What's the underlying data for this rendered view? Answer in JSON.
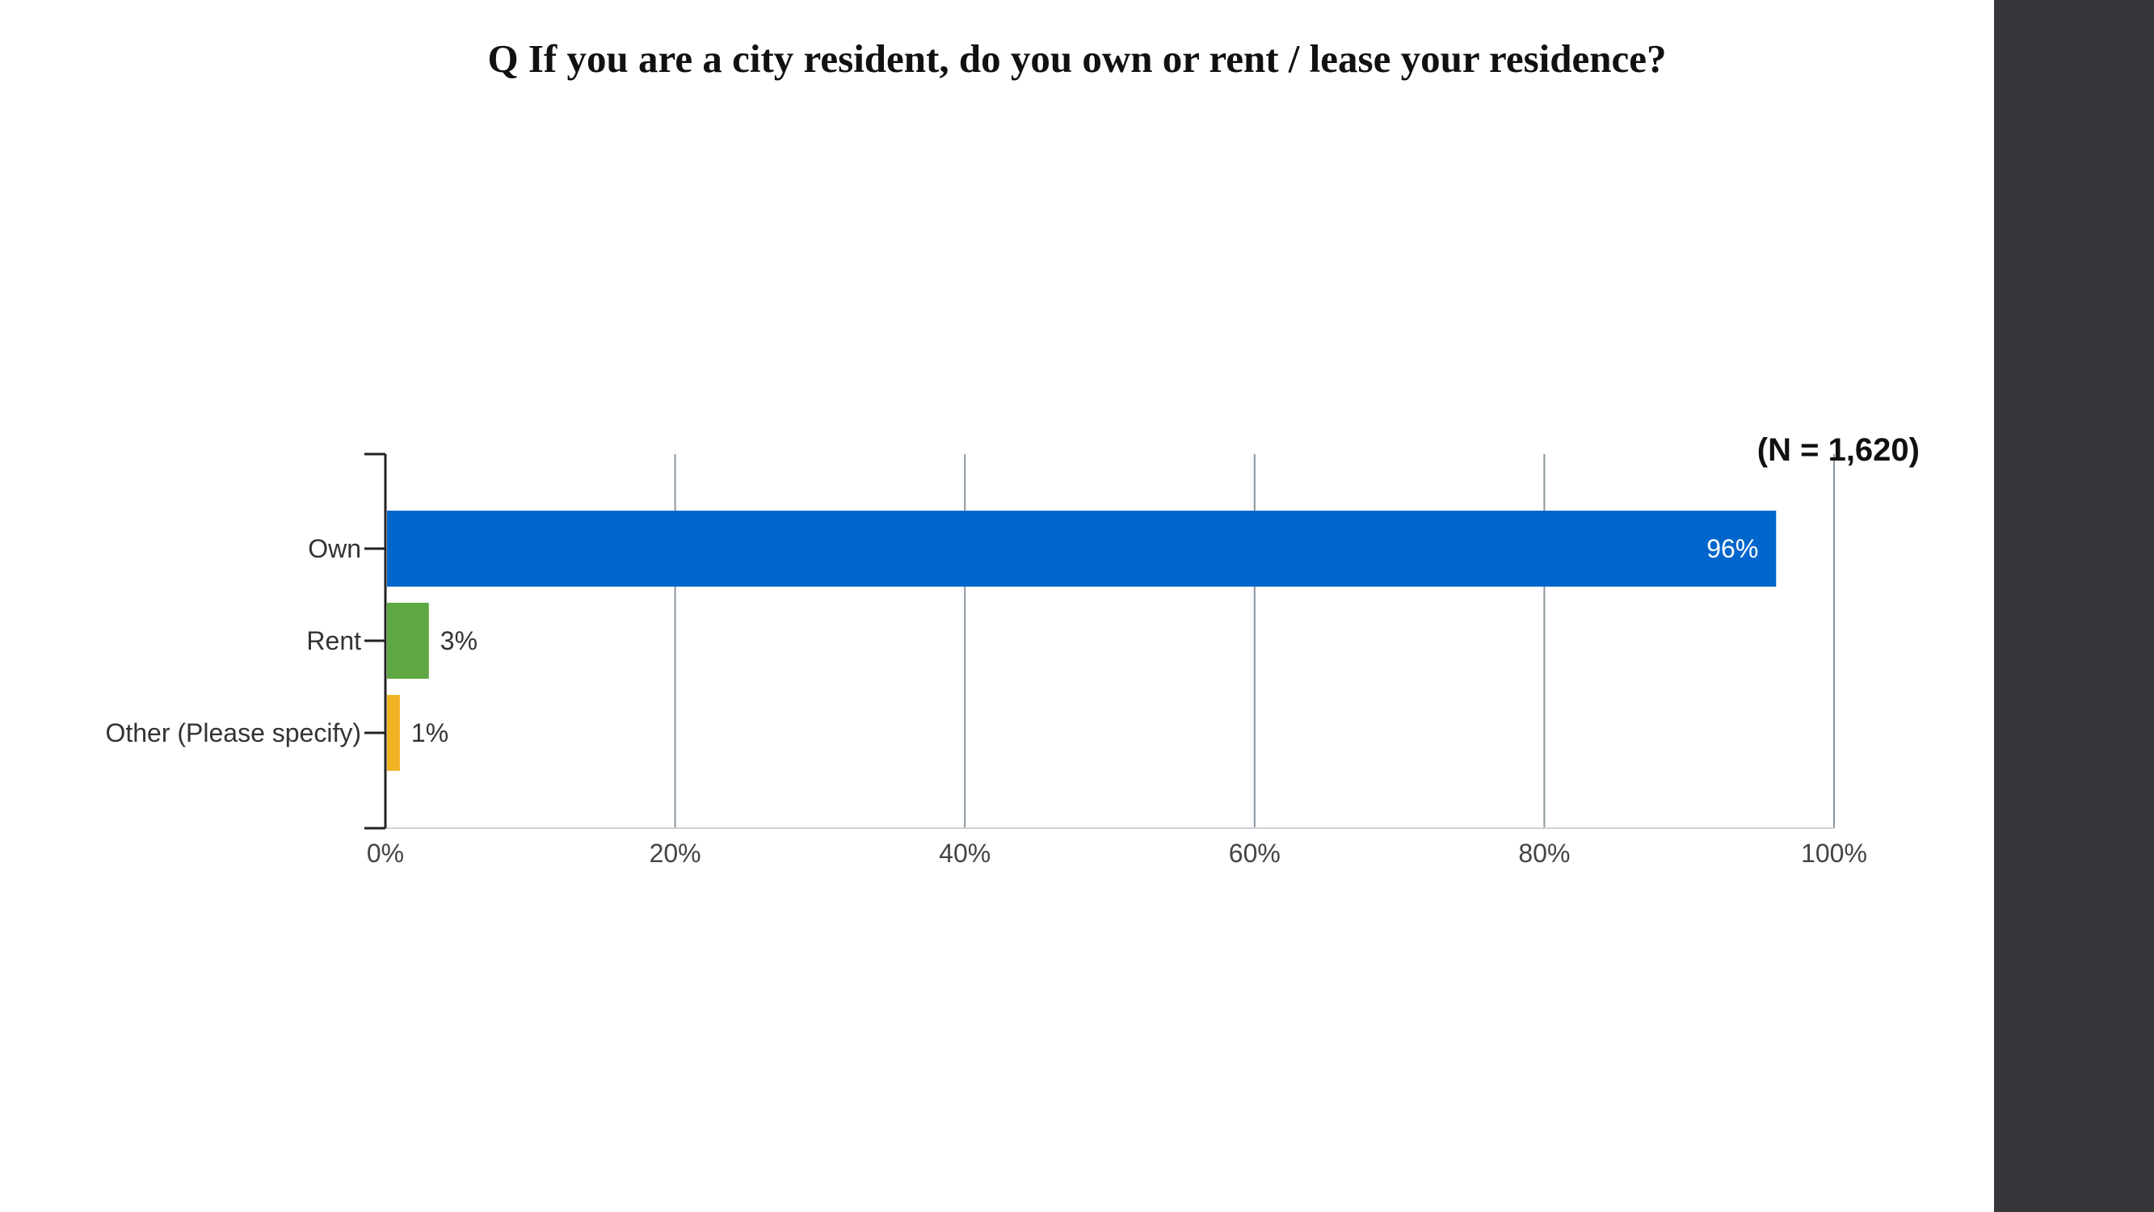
{
  "question": {
    "title": "Q If you are a city resident, do you own or rent / lease your residence?"
  },
  "chart_data": {
    "type": "bar",
    "orientation": "horizontal",
    "sample_size_label": "(N = 1,620)",
    "categories": [
      "Own",
      "Rent",
      "Other (Please specify)"
    ],
    "values": [
      96,
      3,
      1
    ],
    "value_labels": [
      "96%",
      "3%",
      "1%"
    ],
    "colors": [
      "#0066cc",
      "#5ea843",
      "#f0b323"
    ],
    "xlim": [
      0,
      100
    ],
    "x_ticks": [
      0,
      20,
      40,
      60,
      80,
      100
    ],
    "x_tick_labels": [
      "0%",
      "20%",
      "40%",
      "60%",
      "80%",
      "100%"
    ],
    "grid": true
  },
  "colors": {
    "side_panel": "#36363b",
    "gridline": "#8a969e",
    "axis": "#222222"
  }
}
